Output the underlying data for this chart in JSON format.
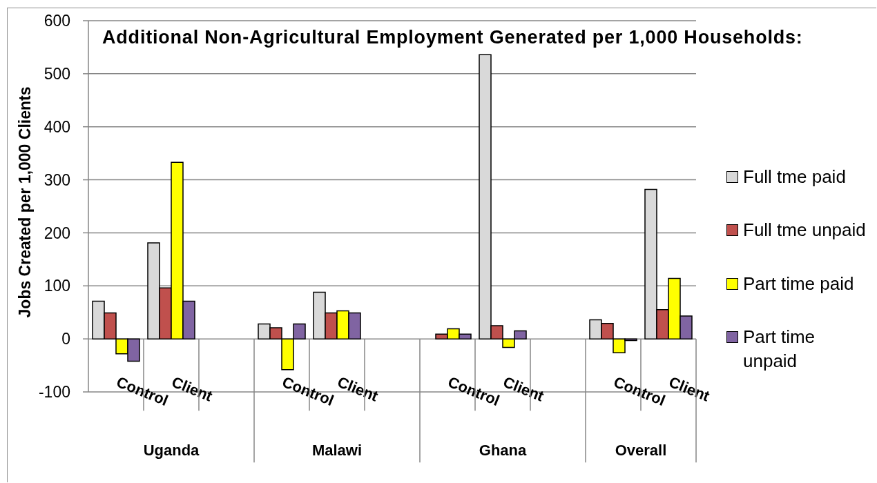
{
  "chart_data": {
    "type": "bar",
    "title": "Additional Non-Agricultural Employment Generated per 1,000 Households:",
    "ylabel": "Jobs Created per 1,000 Clients",
    "categories": [
      "Control",
      "Client",
      null,
      "Control",
      "Client",
      null,
      "Control",
      "Client",
      null,
      "Control",
      "Client"
    ],
    "annotations": [
      "Uganda",
      "Malawi",
      "Ghana",
      "Overall"
    ],
    "series": [
      {
        "name": "Full tme paid",
        "color": "#d9d9d9",
        "values": [
          71,
          181,
          null,
          28,
          88,
          null,
          0,
          536,
          null,
          36,
          282
        ]
      },
      {
        "name": "Full tme unpaid",
        "color": "#c0504d",
        "values": [
          49,
          96,
          null,
          21,
          49,
          null,
          9,
          25,
          null,
          29,
          55
        ]
      },
      {
        "name": "Part time paid",
        "color": "#ffff00",
        "values": [
          -28,
          333,
          null,
          -58,
          53,
          null,
          19,
          -16,
          null,
          -26,
          114
        ]
      },
      {
        "name": "Part time unpaid",
        "color": "#8064a2",
        "values": [
          -42,
          71,
          null,
          28,
          49,
          null,
          9,
          15,
          null,
          -3,
          43
        ]
      }
    ],
    "ylim": [
      -100,
      600
    ],
    "yticks": [
      -100,
      0,
      100,
      200,
      300,
      400,
      500,
      600
    ],
    "grid": "y",
    "legend": "right"
  }
}
